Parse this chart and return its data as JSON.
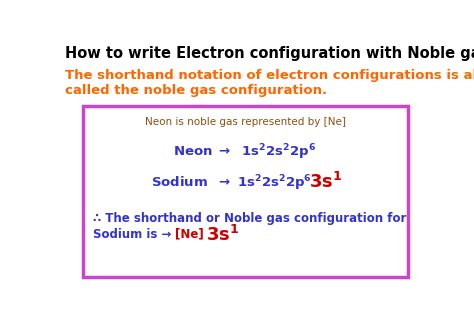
{
  "title": "How to write Electron configuration with Noble gas?",
  "title_color": "#000000",
  "title_fontsize": 10.5,
  "subtitle_line1": "The shorthand notation of electron configurations is also",
  "subtitle_line2": "called the noble gas configuration.",
  "subtitle_color": "#FF6600",
  "subtitle_fontsize": 9.5,
  "box_border_color": "#CC44CC",
  "box_bg_color": "#FFFFFF",
  "neon_label": "Neon is noble gas represented by [Ne]",
  "neon_label_color": "#8B5010",
  "neon_label_fontsize": 7.5,
  "neon_color": "#3333CC",
  "sodium_color": "#3333CC",
  "sodium_3s_color": "#CC0000",
  "conclusion_line1": "∴ The shorthand or Noble gas configuration for",
  "conclusion_line2_prefix": "Sodium is →  ",
  "conclusion_ne": "[Ne] ",
  "conclusion_color": "#3333CC",
  "conclusion_ne_color": "#CC0000",
  "conclusion_3s_color": "#CC0000",
  "conclusion_fontsize": 8.5,
  "bg_color": "#FFFFFF"
}
